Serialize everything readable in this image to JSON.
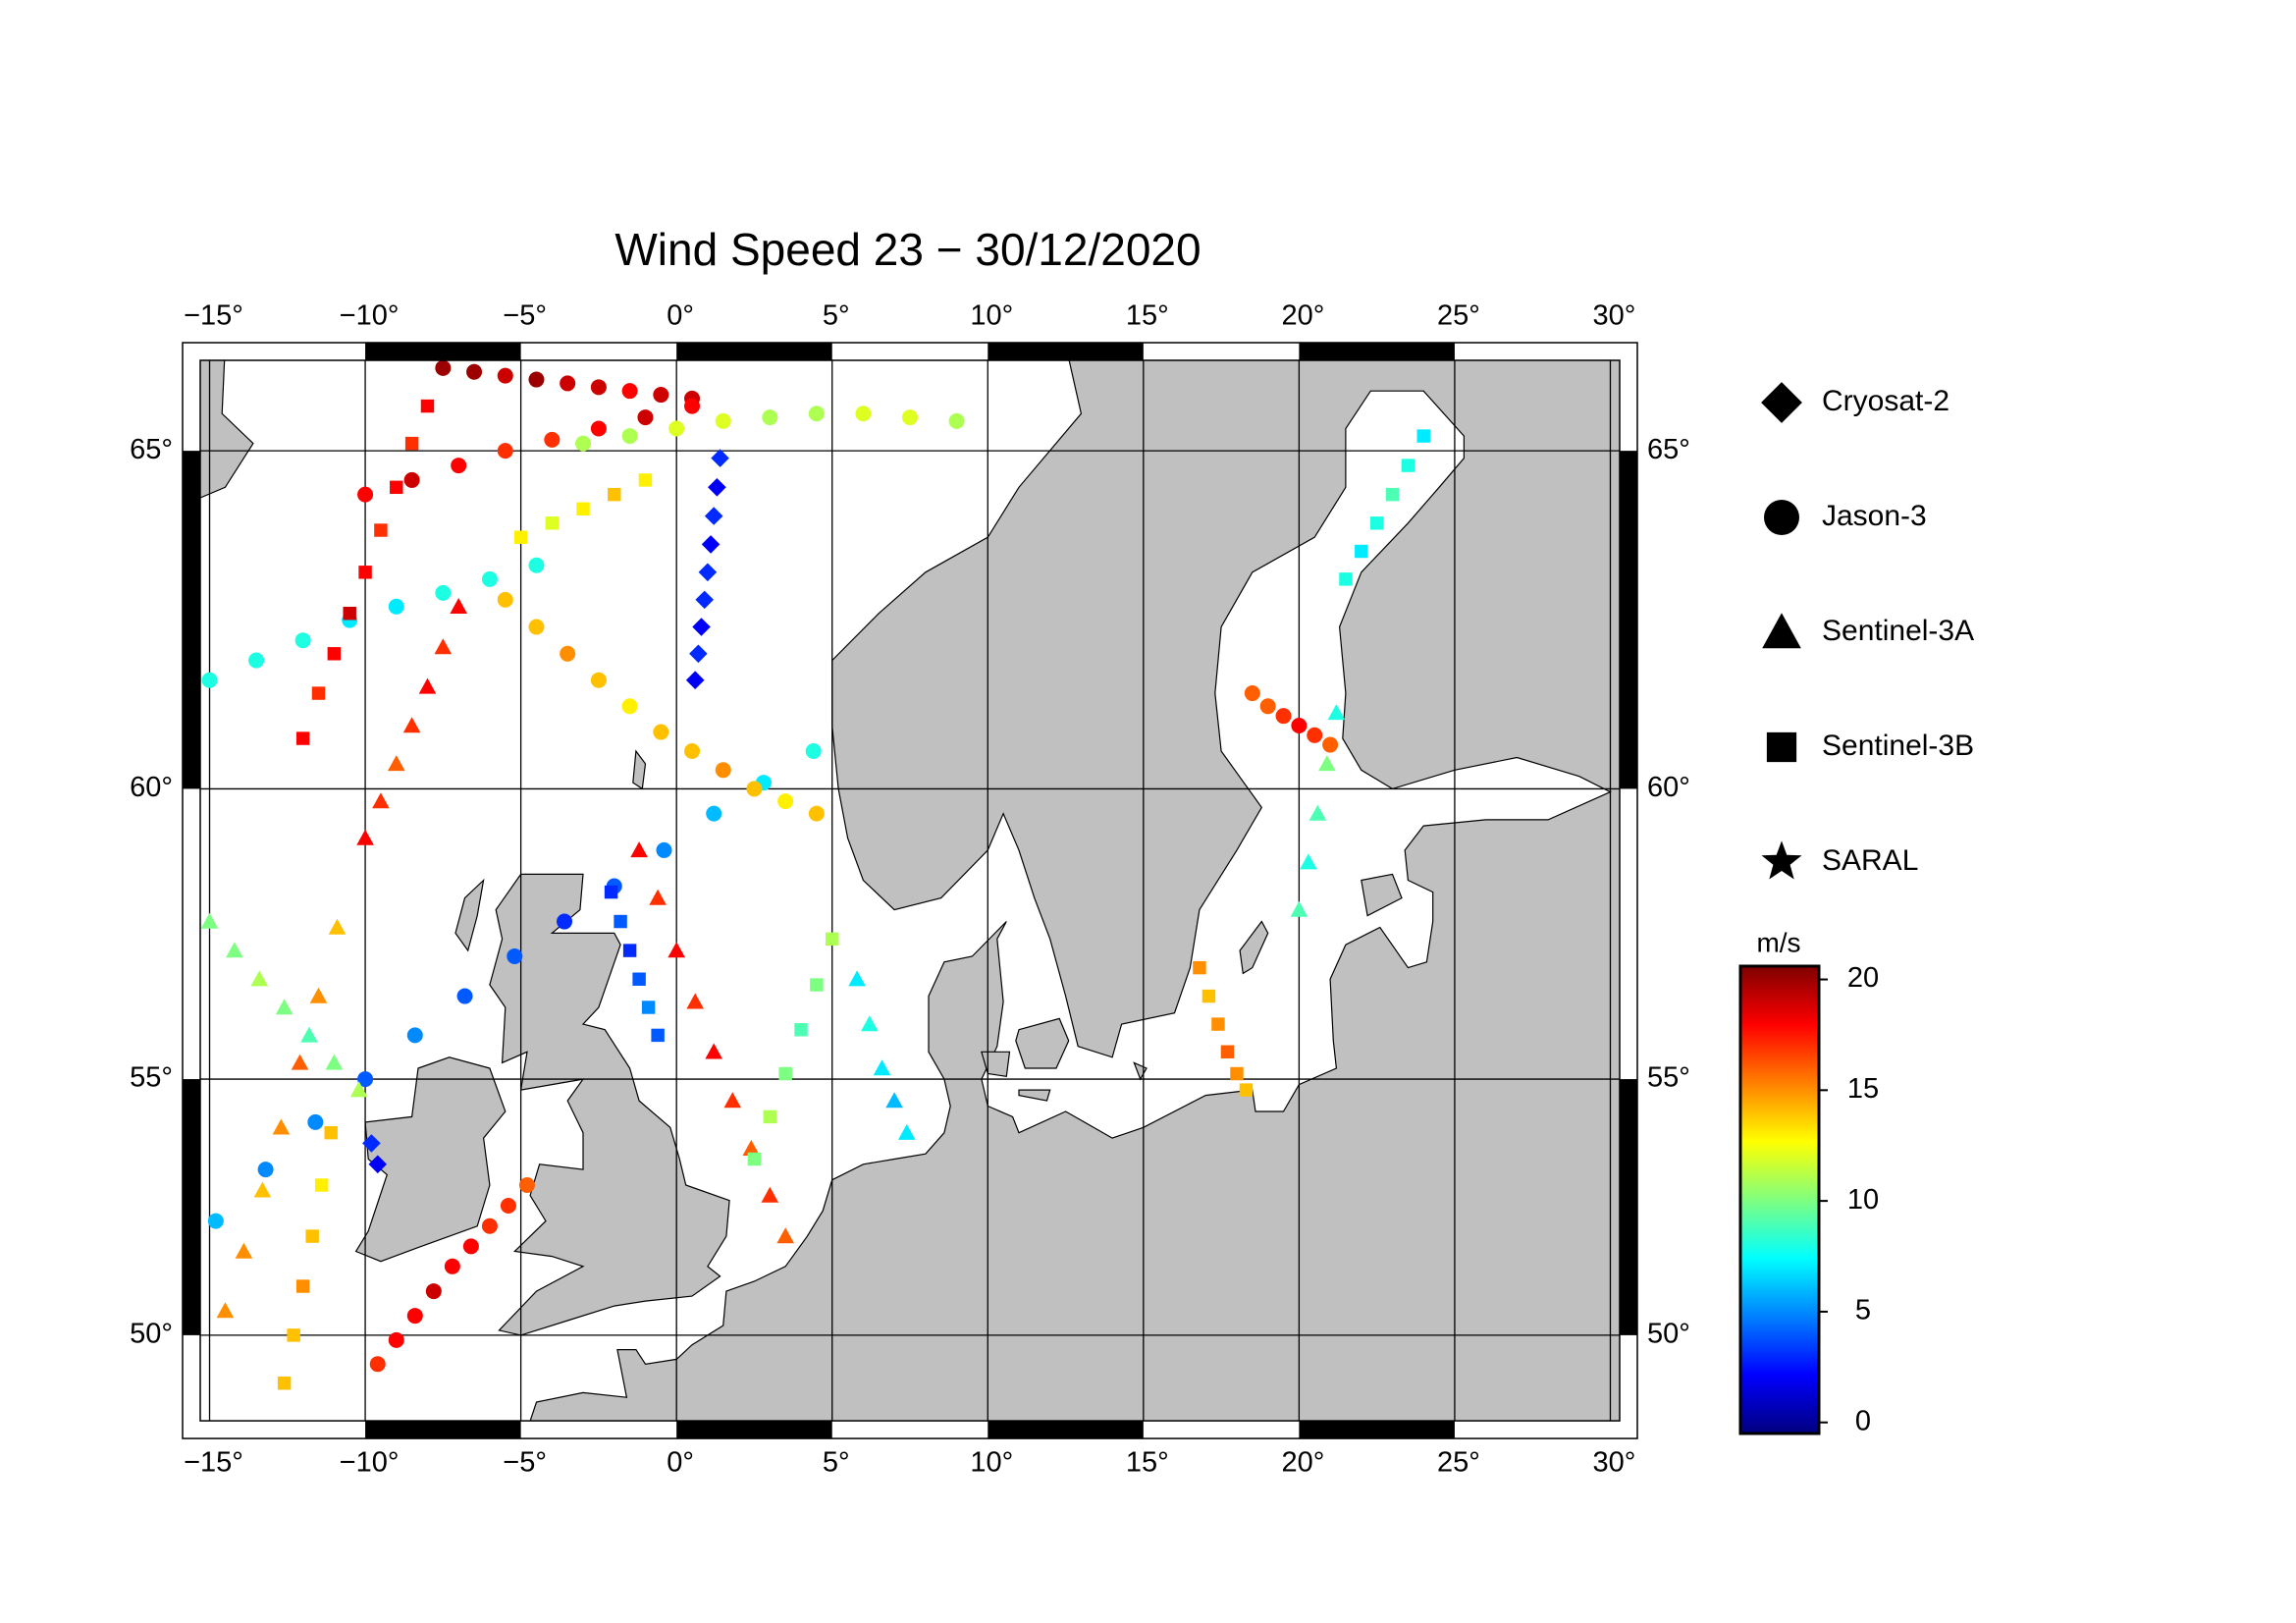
{
  "map": {
    "type": "scatter-map",
    "title": "Wind Speed 23 − 30/12/2020",
    "projection": "mercator",
    "xlim": [
      -15.3,
      30.3
    ],
    "ylim": [
      48.2,
      66.2
    ],
    "xticks": [
      {
        "value": -15,
        "label": "−15°"
      },
      {
        "value": -10,
        "label": "−10°"
      },
      {
        "value": -5,
        "label": "−5°"
      },
      {
        "value": 0,
        "label": "0°"
      },
      {
        "value": 5,
        "label": "5°"
      },
      {
        "value": 10,
        "label": "10°"
      },
      {
        "value": 15,
        "label": "15°"
      },
      {
        "value": 20,
        "label": "20°"
      },
      {
        "value": 25,
        "label": "25°"
      },
      {
        "value": 30,
        "label": "30°"
      }
    ],
    "yticks": [
      {
        "value": 50,
        "label": "50°"
      },
      {
        "value": 55,
        "label": "55°"
      },
      {
        "value": 60,
        "label": "60°"
      },
      {
        "value": 65,
        "label": "65°"
      }
    ],
    "grid": true,
    "colormap": "jet",
    "clim": [
      -0.5,
      20.6
    ],
    "colorbar_label": "m/s",
    "colorbar_ticks": [
      0,
      5,
      10,
      15,
      20
    ],
    "satellites": [
      {
        "name": "Cryosat-2",
        "marker": "diamond",
        "lon": [
          0.6,
          0.7,
          0.8,
          0.9,
          1.0,
          1.1,
          1.2,
          1.3,
          1.4,
          -9.8,
          -9.6
        ],
        "lat": [
          61.7,
          62.1,
          62.5,
          62.9,
          63.3,
          63.7,
          64.1,
          64.5,
          64.9,
          53.8,
          53.4
        ],
        "speed": [
          2,
          3,
          2,
          3,
          3,
          2,
          3,
          2,
          3,
          3,
          2
        ]
      },
      {
        "name": "Jason-3",
        "marker": "circle",
        "lon": [
          -14.8,
          -13.2,
          -11.6,
          -10.0,
          -8.4,
          -6.8,
          -5.2,
          -3.6,
          -2.0,
          -0.4,
          1.2,
          2.8,
          4.4,
          -9.6,
          -9.0,
          -8.4,
          -7.8,
          -7.2,
          -6.6,
          -6.0,
          -5.4,
          -4.8,
          -7.5,
          -6.5,
          -5.5,
          -4.5,
          -3.5,
          -2.5,
          -1.5,
          -0.5,
          0.5,
          -10,
          -8.5,
          -7,
          -5.5,
          -4,
          -2.5,
          -1,
          0.5,
          -15,
          -13.5,
          -12,
          -10.5,
          -9,
          -7.5,
          -6,
          -4.5,
          -5.5,
          -4.5,
          -3.5,
          -2.5,
          -1.5,
          -0.5,
          0.5,
          1.5,
          2.5,
          3.5,
          4.5,
          18.5,
          19,
          19.5,
          20,
          20.5,
          21,
          -3,
          -1.5,
          0,
          1.5,
          3,
          4.5,
          6,
          7.5,
          9
        ],
        "lat": [
          52.3,
          53.3,
          54.2,
          55.0,
          55.8,
          56.5,
          57.2,
          57.8,
          58.4,
          59.0,
          59.6,
          60.1,
          60.6,
          49.4,
          49.9,
          50.4,
          50.9,
          51.4,
          51.8,
          52.2,
          52.6,
          53.0,
          66.1,
          66.05,
          66.0,
          65.95,
          65.9,
          65.85,
          65.8,
          65.75,
          65.7,
          64.4,
          64.6,
          64.8,
          65.0,
          65.15,
          65.3,
          65.45,
          65.6,
          61.7,
          62.0,
          62.3,
          62.6,
          62.8,
          63.0,
          63.2,
          63.4,
          62.9,
          62.5,
          62.1,
          61.7,
          61.3,
          60.9,
          60.6,
          60.3,
          60.0,
          59.8,
          59.6,
          61.5,
          61.3,
          61.15,
          61.0,
          60.85,
          60.7,
          65.1,
          65.2,
          65.3,
          65.4,
          65.45,
          65.5,
          65.5,
          65.45,
          65.4
        ],
        "speed": [
          6,
          5,
          5,
          4,
          5,
          4,
          4,
          3,
          4,
          5,
          6,
          7,
          8,
          17,
          18,
          18,
          19,
          18,
          18,
          17,
          17,
          16,
          20,
          20,
          19,
          20,
          19,
          19,
          18,
          19,
          19,
          18,
          19,
          18,
          17,
          17,
          18,
          19,
          18,
          8,
          8,
          8,
          7,
          7,
          8,
          8,
          8,
          14,
          14,
          15,
          14,
          13,
          14,
          14,
          15,
          14,
          13,
          14,
          16,
          16,
          17,
          18,
          17,
          16,
          11,
          11,
          12,
          12,
          11,
          11,
          12,
          12,
          11
        ]
      },
      {
        "name": "Sentinel-3A",
        "marker": "triangle",
        "lon": [
          -1.2,
          -0.6,
          0,
          0.6,
          1.2,
          1.8,
          2.4,
          3.0,
          3.5,
          -14.5,
          -13.9,
          -13.3,
          -12.7,
          -12.1,
          -11.5,
          -10.9,
          -15,
          -14.2,
          -13.4,
          -12.6,
          -11.8,
          -11,
          -10.2,
          5.8,
          6.2,
          6.6,
          7.0,
          7.4,
          -7.0,
          -7.5,
          -8.0,
          -8.5,
          -9.0,
          -9.5,
          -10.0,
          20,
          20.3,
          20.6,
          20.9,
          21.2
        ],
        "lat": [
          59.0,
          58.2,
          57.3,
          56.4,
          55.5,
          54.6,
          53.7,
          52.8,
          52.0,
          50.5,
          51.7,
          52.9,
          54.1,
          55.3,
          56.5,
          57.7,
          57.8,
          57.3,
          56.8,
          56.3,
          55.8,
          55.3,
          54.8,
          56.8,
          56.0,
          55.2,
          54.6,
          54.0,
          62.8,
          62.2,
          61.6,
          61.0,
          60.4,
          59.8,
          59.2,
          58,
          58.8,
          59.6,
          60.4,
          61.2
        ],
        "speed": [
          18,
          17,
          18,
          17,
          18,
          17,
          16,
          17,
          16,
          15,
          15,
          14,
          15,
          16,
          15,
          14,
          10,
          10,
          11,
          10,
          9,
          10,
          11,
          7,
          8,
          7,
          6,
          7,
          18,
          17,
          18,
          17,
          16,
          17,
          18,
          9,
          8,
          9,
          10,
          8
        ]
      },
      {
        "name": "Sentinel-3B",
        "marker": "square",
        "lon": [
          -12.6,
          -12.3,
          -12.0,
          -11.7,
          -11.4,
          -11.1,
          -2.1,
          -1.8,
          -1.5,
          -1.2,
          -0.9,
          -0.6,
          -12,
          -11.5,
          -11,
          -10.5,
          -10,
          -9.5,
          -9,
          -8.5,
          -8,
          21.5,
          22,
          22.5,
          23,
          23.5,
          24,
          16.8,
          17.1,
          17.4,
          17.7,
          18.0,
          18.3,
          2.5,
          3,
          3.5,
          4,
          4.5,
          5,
          -5,
          -4,
          -3,
          -2,
          -1
        ],
        "lat": [
          49.0,
          50.0,
          51.0,
          52.0,
          53.0,
          54.0,
          58.3,
          57.8,
          57.3,
          56.8,
          56.3,
          55.8,
          60.8,
          61.5,
          62.1,
          62.7,
          63.3,
          63.9,
          64.5,
          65.1,
          65.6,
          63.2,
          63.6,
          64.0,
          64.4,
          64.8,
          65.2,
          57.0,
          56.5,
          56.0,
          55.5,
          55.1,
          54.8,
          53.5,
          54.3,
          55.1,
          55.9,
          56.7,
          57.5,
          63.8,
          64.0,
          64.2,
          64.4,
          64.6
        ],
        "speed": [
          14,
          14,
          15,
          14,
          13,
          14,
          3,
          4,
          3,
          4,
          5,
          4,
          18,
          17,
          18,
          19,
          18,
          17,
          18,
          17,
          18,
          8,
          7,
          8,
          9,
          8,
          7,
          15,
          14,
          15,
          16,
          15,
          14,
          10,
          11,
          10,
          9,
          10,
          11,
          13,
          12,
          13,
          14,
          13
        ]
      },
      {
        "name": "SARAL",
        "marker": "star",
        "lon": [],
        "lat": [],
        "speed": []
      }
    ]
  }
}
